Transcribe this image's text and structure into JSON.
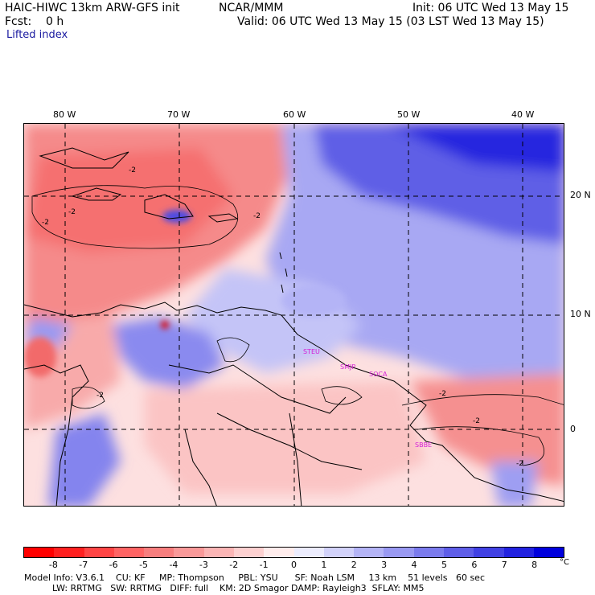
{
  "header": {
    "model": "HAIC-HIWC 13km ARW-GFS init",
    "org": "NCAR/MMM",
    "init": "Init: 06 UTC Wed 13 May 15",
    "fcst": "Fcst:    0 h",
    "valid": "Valid: 06 UTC Wed 13 May 15 (03 LST Wed 13 May 15)",
    "field": "Lifted index"
  },
  "map": {
    "lon_labels": [
      "80 W",
      "70 W",
      "60 W",
      "50 W",
      "40 W"
    ],
    "lat_labels": [
      "20 N",
      "10 N",
      "0"
    ],
    "stations": [
      "STEU",
      "SMJP",
      "SOCA",
      "SBBE"
    ],
    "contour_labels": [
      "-2",
      "-2",
      "-2",
      "-2",
      "-2",
      "-2",
      "-2",
      "-2"
    ]
  },
  "colorbar": {
    "labels": [
      "-8",
      "-7",
      "-6",
      "-5",
      "-4",
      "-3",
      "-2",
      "-1",
      "0",
      "1",
      "2",
      "3",
      "4",
      "5",
      "6",
      "7",
      "8"
    ],
    "unit": "°C",
    "colors": [
      "#ff0000",
      "#ff2020",
      "#ff4545",
      "#ff6464",
      "#f77e7e",
      "#f99999",
      "#fbb5b5",
      "#fdd0d0",
      "#ffecec",
      "#ececfd",
      "#d2d2fa",
      "#b4b4f6",
      "#9999f2",
      "#7b7bed",
      "#5f5ee8",
      "#4141e4",
      "#2222e0",
      "#0000dd"
    ]
  },
  "footer": {
    "line1": "Model Info: V3.6.1    CU: KF     MP: Thompson     PBL: YSU      SF: Noah LSM     13 km    51 levels   60 sec",
    "line2": "          LW: RRTMG   SW: RRTMG   DIFF: full    KM: 2D Smagor DAMP: Rayleigh3  SFLAY: MM5"
  }
}
